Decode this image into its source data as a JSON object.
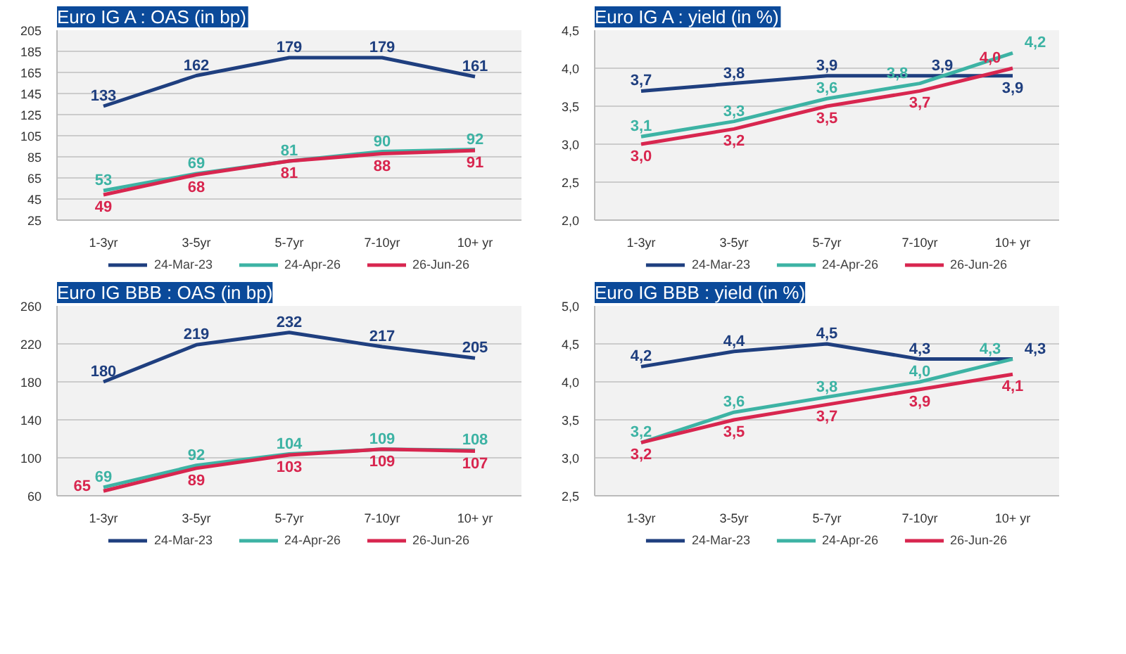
{
  "chart_data": [
    {
      "type": "line",
      "title": "Euro IG A : OAS (in bp)",
      "categories": [
        "1-3yr",
        "3-5yr",
        "5-7yr",
        "7-10yr",
        "10+ yr"
      ],
      "series": [
        {
          "name": "24-Mar-23",
          "color": "#1f3f7f",
          "values": [
            133,
            162,
            179,
            179,
            161
          ]
        },
        {
          "name": "24-Apr-26",
          "color": "#3db3a4",
          "values": [
            53,
            69,
            81,
            90,
            92
          ]
        },
        {
          "name": "26-Jun-26",
          "color": "#d8264f",
          "values": [
            49,
            68,
            81,
            88,
            91
          ]
        }
      ],
      "ylim": [
        25,
        205
      ],
      "yticks": [
        25,
        45,
        65,
        85,
        105,
        125,
        145,
        165,
        185,
        205
      ],
      "grid": "y",
      "legend": "bottom",
      "data_labels": true
    },
    {
      "type": "line",
      "title": "Euro IG A : yield (in %)",
      "categories": [
        "1-3yr",
        "3-5yr",
        "5-7yr",
        "7-10yr",
        "10+ yr"
      ],
      "series": [
        {
          "name": "24-Mar-23",
          "color": "#1f3f7f",
          "values": [
            3.7,
            3.8,
            3.9,
            3.9,
            3.9
          ],
          "value_labels": [
            "3,7",
            "3,8",
            "3,9",
            "3,9",
            "3,9"
          ]
        },
        {
          "name": "24-Apr-26",
          "color": "#3db3a4",
          "values": [
            3.1,
            3.3,
            3.6,
            3.8,
            4.2
          ],
          "value_labels": [
            "3,1",
            "3,3",
            "3,6",
            "3,8",
            "4,2"
          ]
        },
        {
          "name": "26-Jun-26",
          "color": "#d8264f",
          "values": [
            3.0,
            3.2,
            3.5,
            3.7,
            4.0
          ],
          "value_labels": [
            "3,0",
            "3,2",
            "3,5",
            "3,7",
            "4,0"
          ]
        }
      ],
      "ylim": [
        2.0,
        4.5
      ],
      "yticks": [
        {
          "value": 2.0,
          "label": "2,0"
        },
        {
          "value": 2.5,
          "label": "2,5"
        },
        {
          "value": 3.0,
          "label": "3,0"
        },
        {
          "value": 3.5,
          "label": "3,5"
        },
        {
          "value": 4.0,
          "label": "4,0"
        },
        {
          "value": 4.5,
          "label": "4,5"
        }
      ],
      "grid": "y",
      "legend": "bottom"
    },
    {
      "type": "line",
      "title": "Euro IG BBB : OAS (in bp)",
      "categories": [
        "1-3yr",
        "3-5yr",
        "5-7yr",
        "7-10yr",
        "10+ yr"
      ],
      "series": [
        {
          "name": "24-Mar-23",
          "color": "#1f3f7f",
          "values": [
            180,
            219,
            232,
            217,
            205
          ]
        },
        {
          "name": "24-Apr-26",
          "color": "#3db3a4",
          "values": [
            69,
            92,
            104,
            109,
            108
          ]
        },
        {
          "name": "26-Jun-26",
          "color": "#d8264f",
          "values": [
            65,
            89,
            103,
            109,
            107
          ]
        }
      ],
      "ylim": [
        60,
        260
      ],
      "yticks": [
        60,
        100,
        140,
        180,
        220,
        260
      ],
      "grid": "y",
      "legend": "bottom",
      "data_labels": true
    },
    {
      "type": "line",
      "title": "Euro IG BBB : yield (in %)",
      "categories": [
        "1-3yr",
        "3-5yr",
        "5-7yr",
        "7-10yr",
        "10+ yr"
      ],
      "series": [
        {
          "name": "24-Mar-23",
          "color": "#1f3f7f",
          "values": [
            4.2,
            4.4,
            4.5,
            4.3,
            4.3
          ],
          "value_labels": [
            "4,2",
            "4,4",
            "4,5",
            "4,3",
            "4,3"
          ]
        },
        {
          "name": "24-Apr-26",
          "color": "#3db3a4",
          "values": [
            3.2,
            3.6,
            3.8,
            4.0,
            4.3
          ],
          "value_labels": [
            "3,2",
            "3,6",
            "3,8",
            "4,0",
            "4,3"
          ]
        },
        {
          "name": "26-Jun-26",
          "color": "#d8264f",
          "values": [
            3.2,
            3.5,
            3.7,
            3.9,
            4.1
          ],
          "value_labels": [
            "3,2",
            "3,5",
            "3,7",
            "3,9",
            "4,1"
          ]
        }
      ],
      "ylim": [
        2.5,
        5.0
      ],
      "yticks": [
        {
          "value": 2.5,
          "label": "2,5"
        },
        {
          "value": 3.0,
          "label": "3,0"
        },
        {
          "value": 3.5,
          "label": "3,5"
        },
        {
          "value": 4.0,
          "label": "4,0"
        },
        {
          "value": 4.5,
          "label": "4,5"
        },
        {
          "value": 5.0,
          "label": "5,0"
        }
      ],
      "grid": "y",
      "legend": "bottom"
    }
  ]
}
